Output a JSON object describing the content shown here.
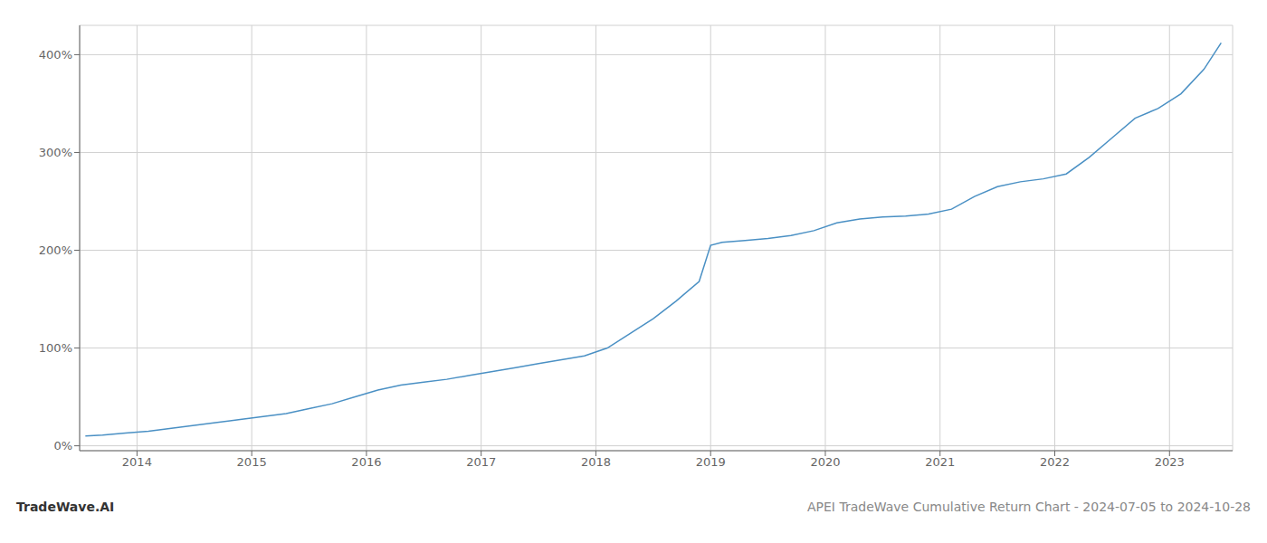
{
  "chart_data": {
    "type": "line",
    "title": "APEI TradeWave Cumulative Return Chart - 2024-07-05 to 2024-10-28",
    "annotations": [
      "TradeWave.AI"
    ],
    "x": [
      2013.55,
      2013.7,
      2013.9,
      2014.1,
      2014.3,
      2014.5,
      2014.7,
      2014.9,
      2015.1,
      2015.3,
      2015.5,
      2015.7,
      2015.9,
      2016.1,
      2016.3,
      2016.5,
      2016.7,
      2016.9,
      2017.1,
      2017.3,
      2017.5,
      2017.7,
      2017.9,
      2018.1,
      2018.3,
      2018.5,
      2018.7,
      2018.9,
      2019.0,
      2019.1,
      2019.3,
      2019.5,
      2019.7,
      2019.9,
      2020.1,
      2020.3,
      2020.5,
      2020.7,
      2020.9,
      2021.1,
      2021.3,
      2021.5,
      2021.7,
      2021.9,
      2022.1,
      2022.3,
      2022.5,
      2022.7,
      2022.9,
      2023.1,
      2023.3,
      2023.45
    ],
    "values": [
      10,
      11,
      13,
      15,
      18,
      21,
      24,
      27,
      30,
      33,
      38,
      43,
      50,
      57,
      62,
      65,
      68,
      72,
      76,
      80,
      84,
      88,
      92,
      100,
      115,
      130,
      148,
      168,
      205,
      208,
      210,
      212,
      215,
      220,
      228,
      232,
      234,
      235,
      237,
      242,
      255,
      265,
      270,
      273,
      278,
      295,
      315,
      335,
      345,
      360,
      385,
      412
    ],
    "color": "#4a90c4",
    "xlim": [
      2013.5,
      2023.55
    ],
    "ylim": [
      -5,
      430
    ],
    "xticks": [
      2014,
      2015,
      2016,
      2017,
      2018,
      2019,
      2020,
      2021,
      2022,
      2023
    ],
    "yticks": [
      {
        "value": 0,
        "label": "0%"
      },
      {
        "value": 100,
        "label": "100%"
      },
      {
        "value": 200,
        "label": "200%"
      },
      {
        "value": 300,
        "label": "300%"
      },
      {
        "value": 400,
        "label": "400%"
      }
    ],
    "grid": true
  }
}
